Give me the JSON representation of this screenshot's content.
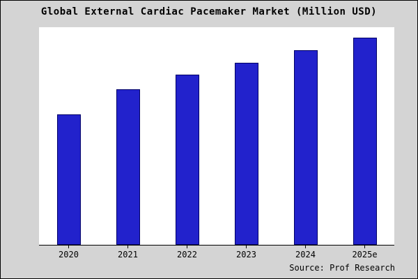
{
  "chart": {
    "title": "Global External Cardiac Pacemaker Market (Million USD)",
    "source": "Source: Prof Research"
  },
  "chart_data": {
    "type": "bar",
    "title": "Global External Cardiac Pacemaker Market (Million USD)",
    "categories": [
      "2020",
      "2021",
      "2022",
      "2023",
      "2024",
      "2025e"
    ],
    "values": [
      63,
      75,
      82,
      88,
      94,
      100
    ],
    "xlabel": "",
    "ylabel": "",
    "ylim": [
      0,
      105
    ],
    "grid": false,
    "legend": false,
    "annotations": [
      "Source: Prof Research"
    ],
    "bar_color": "#2222cc",
    "bar_border_color": "#000066",
    "background_color": "#d4d4d4",
    "plot_background_color": "#ffffff",
    "frame_border_color": "#000000"
  }
}
